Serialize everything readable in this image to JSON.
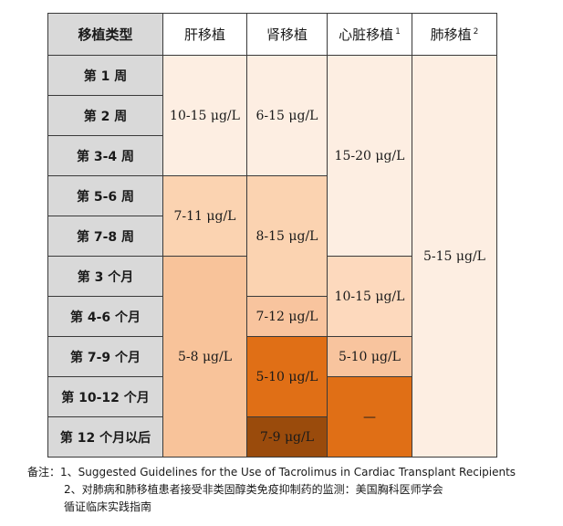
{
  "header": {
    "type_label": "移植类型",
    "liver": "肝移植",
    "kidney": "肾移植",
    "heart": "心脏移植",
    "heart_sup": "1",
    "lung": "肺移植",
    "lung_sup": "2"
  },
  "rows": [
    "第 1 周",
    "第 2 周",
    "第 3-4 周",
    "第 5-6 周",
    "第 7-8 周",
    "第 3 个月",
    "第 4-6 个月",
    "第 7-9 个月",
    "第 10-12 个月",
    "第 12 个月以后"
  ],
  "cells": {
    "liver_1": "10-15 μg/L",
    "liver_2": "7-11 μg/L",
    "liver_3": "5-8 μg/L",
    "kidney_1": "6-15 μg/L",
    "kidney_2": "8-15 μg/L",
    "kidney_3": "7-12 μg/L",
    "kidney_4": "5-10 μg/L",
    "kidney_5": "7-9 μg/L",
    "heart_1": "15-20 μg/L",
    "heart_2": "10-15 μg/L",
    "heart_3": "5-10 μg/L",
    "heart_4": "—",
    "lung_1": "5-15 μg/L"
  },
  "colors": {
    "header_gray": "#d9d9d9",
    "light_peach": "#fdeee2",
    "peach": "#fbd3b1",
    "orange": "#e06f16",
    "dark_brown": "#9a4b0c"
  },
  "notes": {
    "line1": "备注：1、Suggested Guidelines for the Use of Tacrolimus in Cardiac Transplant Recipients",
    "line2": "2、对肺病和肺移植患者接受非类固醇类免疫抑制药的监测：美国胸科医师学会",
    "line3": "循证临床实践指南"
  }
}
